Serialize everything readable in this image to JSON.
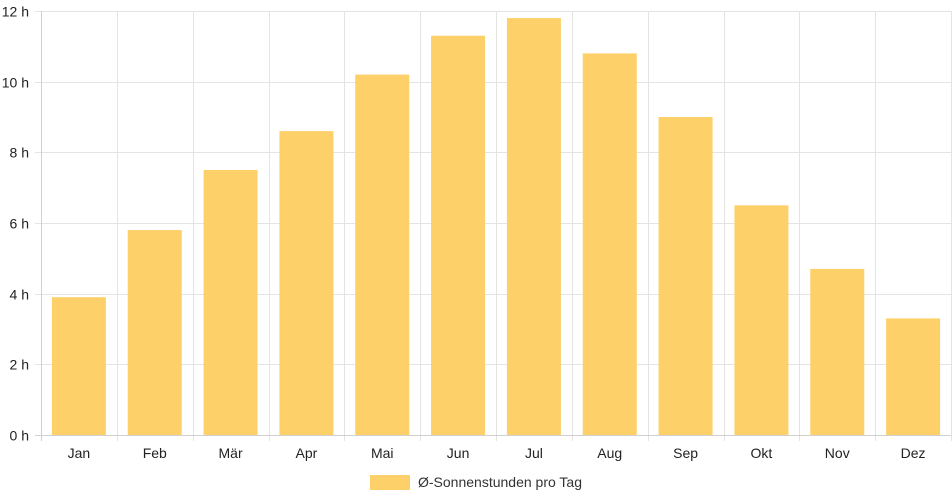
{
  "chart_data": {
    "type": "bar",
    "categories": [
      "Jan",
      "Feb",
      "Mär",
      "Apr",
      "Mai",
      "Jun",
      "Jul",
      "Aug",
      "Sep",
      "Okt",
      "Nov",
      "Dez"
    ],
    "series": [
      {
        "name": "Ø-Sonnenstunden pro Tag",
        "values": [
          3.9,
          5.8,
          7.5,
          8.6,
          10.2,
          11.3,
          11.8,
          10.8,
          9.0,
          6.5,
          4.7,
          3.3
        ],
        "color": "#fdd069"
      }
    ],
    "y_ticks": [
      "0 h",
      "2 h",
      "4 h",
      "6 h",
      "8 h",
      "10 h",
      "12 h"
    ],
    "ylim": [
      0,
      12
    ],
    "y_step": 2,
    "grid": true,
    "legend_position": "bottom"
  }
}
